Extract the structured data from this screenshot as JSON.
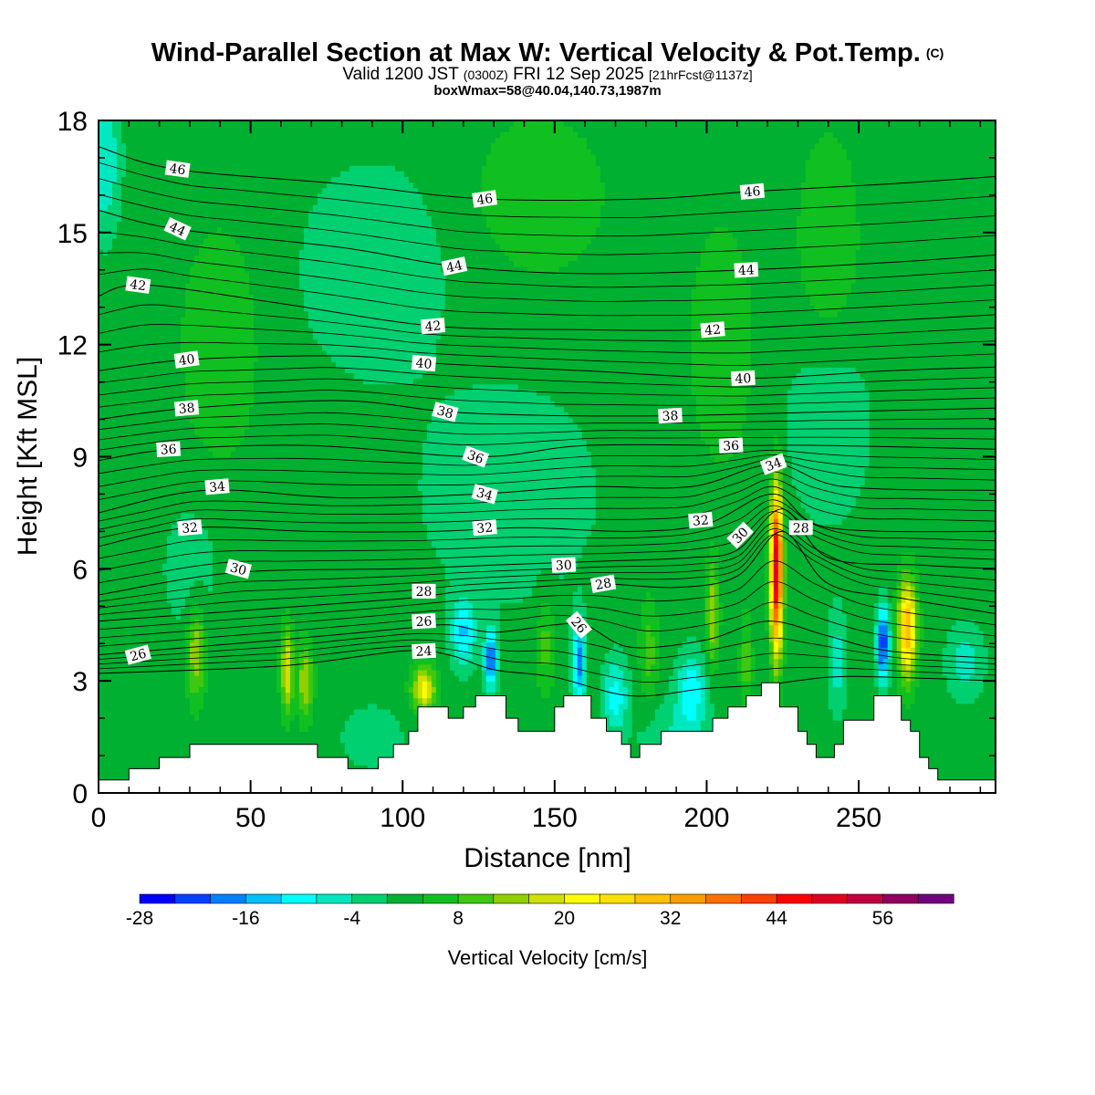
{
  "chart_data": {
    "type": "heatmap",
    "title": "Wind-Parallel Section at Max W: Vertical Velocity & Pot.Temp.",
    "title_mark": "(C)",
    "subtitle_main": "Valid 1200 JST",
    "subtitle_utc": "(0300Z)",
    "subtitle_date": "FRI 12 Sep 2025",
    "subtitle_fcst": "[21hrFcst@1137z]",
    "subtitle2": "boxWmax=58@40.04,140.73,1987m",
    "xlabel": "Distance [nm]",
    "ylabel": "Height [Kft MSL]",
    "xlim": [
      0,
      295
    ],
    "ylim": [
      0,
      18
    ],
    "x_ticks": [
      "0",
      "50",
      "100",
      "150",
      "200",
      "250"
    ],
    "y_ticks": [
      "0",
      "3",
      "6",
      "9",
      "12",
      "15",
      "18"
    ],
    "colorbar_label": "Vertical Velocity [cm/s]",
    "colorbar_ticks": [
      "-28",
      "-16",
      "-4",
      "8",
      "20",
      "32",
      "44",
      "56"
    ],
    "colorbar_colors": [
      "#0000ff",
      "#0040ff",
      "#0080ff",
      "#00c0ff",
      "#00ffff",
      "#00e8c0",
      "#00d070",
      "#00b030",
      "#10c020",
      "#40c810",
      "#90d000",
      "#d0e000",
      "#ffff00",
      "#ffe000",
      "#ffc000",
      "#ff9c00",
      "#ff7000",
      "#ff4000",
      "#ff0000",
      "#e00020",
      "#c00040",
      "#900060",
      "#700080"
    ],
    "background_w_cms": 2,
    "terrain_kft": [
      [
        0,
        0.35
      ],
      [
        10,
        0.35
      ],
      [
        10,
        0.65
      ],
      [
        20,
        0.65
      ],
      [
        20,
        0.95
      ],
      [
        30,
        0.95
      ],
      [
        30,
        1.3
      ],
      [
        72,
        1.3
      ],
      [
        72,
        0.95
      ],
      [
        82,
        0.95
      ],
      [
        82,
        0.65
      ],
      [
        92,
        0.65
      ],
      [
        92,
        0.95
      ],
      [
        97,
        0.95
      ],
      [
        97,
        1.3
      ],
      [
        102,
        1.3
      ],
      [
        102,
        1.65
      ],
      [
        105,
        1.65
      ],
      [
        105,
        2.3
      ],
      [
        115,
        2.3
      ],
      [
        115,
        2.0
      ],
      [
        120,
        2.0
      ],
      [
        120,
        2.3
      ],
      [
        124,
        2.3
      ],
      [
        124,
        2.6
      ],
      [
        134,
        2.6
      ],
      [
        134,
        2.0
      ],
      [
        138,
        2.0
      ],
      [
        138,
        1.65
      ],
      [
        150,
        1.65
      ],
      [
        150,
        2.3
      ],
      [
        153,
        2.3
      ],
      [
        153,
        2.6
      ],
      [
        162,
        2.6
      ],
      [
        162,
        2.0
      ],
      [
        167,
        2.0
      ],
      [
        167,
        1.65
      ],
      [
        172,
        1.65
      ],
      [
        172,
        1.3
      ],
      [
        175,
        1.3
      ],
      [
        175,
        0.95
      ],
      [
        178,
        0.95
      ],
      [
        178,
        1.3
      ],
      [
        185,
        1.3
      ],
      [
        185,
        1.65
      ],
      [
        202,
        1.65
      ],
      [
        202,
        2.0
      ],
      [
        207,
        2.0
      ],
      [
        207,
        2.3
      ],
      [
        213,
        2.3
      ],
      [
        213,
        2.6
      ],
      [
        218,
        2.6
      ],
      [
        218,
        2.95
      ],
      [
        224,
        2.95
      ],
      [
        224,
        2.3
      ],
      [
        230,
        2.3
      ],
      [
        230,
        1.65
      ],
      [
        233,
        1.65
      ],
      [
        233,
        1.3
      ],
      [
        236,
        1.3
      ],
      [
        236,
        0.95
      ],
      [
        242,
        0.95
      ],
      [
        242,
        1.3
      ],
      [
        245,
        1.3
      ],
      [
        245,
        1.95
      ],
      [
        255,
        1.95
      ],
      [
        255,
        2.6
      ],
      [
        264,
        2.6
      ],
      [
        264,
        1.95
      ],
      [
        267,
        1.95
      ],
      [
        267,
        1.65
      ],
      [
        270,
        1.65
      ],
      [
        270,
        0.95
      ],
      [
        273,
        0.95
      ],
      [
        273,
        0.65
      ],
      [
        276,
        0.65
      ],
      [
        276,
        0.35
      ],
      [
        295,
        0.35
      ]
    ],
    "w_cells": [
      {
        "x": 32,
        "z": 3.8,
        "sx": 3,
        "sz": 1.3,
        "w": 14
      },
      {
        "x": 62,
        "z": 3.3,
        "sx": 2,
        "sz": 1.1,
        "w": 18
      },
      {
        "x": 68,
        "z": 3.0,
        "sx": 2.5,
        "sz": 1.0,
        "w": 14
      },
      {
        "x": 107,
        "z": 2.8,
        "sx": 4,
        "sz": 0.6,
        "w": 20
      },
      {
        "x": 120,
        "z": 4.3,
        "sx": 4,
        "sz": 0.9,
        "w": -14
      },
      {
        "x": 129,
        "z": 3.6,
        "sx": 2,
        "sz": 0.8,
        "w": -22
      },
      {
        "x": 147,
        "z": 4.0,
        "sx": 3,
        "sz": 1.3,
        "w": 8
      },
      {
        "x": 158,
        "z": 3.5,
        "sx": 2,
        "sz": 1.1,
        "w": -20
      },
      {
        "x": 170,
        "z": 2.6,
        "sx": 4,
        "sz": 1.0,
        "w": -12
      },
      {
        "x": 181,
        "z": 3.8,
        "sx": 3,
        "sz": 1.4,
        "w": 8
      },
      {
        "x": 195,
        "z": 2.8,
        "sx": 5,
        "sz": 1.0,
        "w": -12
      },
      {
        "x": 202,
        "z": 4.8,
        "sx": 2,
        "sz": 1.4,
        "w": 14
      },
      {
        "x": 213,
        "z": 3.5,
        "sx": 2,
        "sz": 1.3,
        "w": 8
      },
      {
        "x": 223,
        "z": 6.0,
        "sx": 2,
        "sz": 2.2,
        "w": 50
      },
      {
        "x": 243,
        "z": 3.5,
        "sx": 3,
        "sz": 1.4,
        "w": -8
      },
      {
        "x": 258,
        "z": 4.0,
        "sx": 2,
        "sz": 1.0,
        "w": -26
      },
      {
        "x": 266,
        "z": 4.4,
        "sx": 3,
        "sz": 1.3,
        "w": 30
      },
      {
        "x": 285,
        "z": 3.5,
        "sx": 6,
        "sz": 1.0,
        "w": -8
      },
      {
        "x": 40,
        "z": 12.0,
        "sx": 12,
        "sz": 3,
        "w": 6
      },
      {
        "x": 30,
        "z": 6.0,
        "sx": 10,
        "sz": 2,
        "w": -4
      },
      {
        "x": 90,
        "z": 14.0,
        "sx": 25,
        "sz": 3,
        "w": -5
      },
      {
        "x": 145,
        "z": 16.0,
        "sx": 20,
        "sz": 2,
        "w": 6
      },
      {
        "x": 205,
        "z": 12.0,
        "sx": 10,
        "sz": 3,
        "w": 6
      },
      {
        "x": 240,
        "z": 14.5,
        "sx": 10,
        "sz": 3,
        "w": 6
      },
      {
        "x": 135,
        "z": 8.0,
        "sx": 30,
        "sz": 3,
        "w": -5
      },
      {
        "x": 240,
        "z": 10.0,
        "sx": 15,
        "sz": 3,
        "w": -5
      },
      {
        "x": 2,
        "z": 17.0,
        "sx": 5,
        "sz": 2,
        "w": -10
      },
      {
        "x": 90,
        "z": 1.5,
        "sx": 12,
        "sz": 1,
        "w": -4
      },
      {
        "x": 190,
        "z": 1.5,
        "sx": 12,
        "sz": 1,
        "w": -6
      }
    ],
    "theta_levels": [
      24,
      26,
      28,
      30,
      32,
      34,
      36,
      38,
      40,
      42,
      44,
      46
    ],
    "theta_lines": [
      {
        "level": 24,
        "pts": [
          [
            0,
            3.2
          ],
          [
            60,
            3.4
          ],
          [
            100,
            3.8
          ],
          [
            115,
            3.7
          ],
          [
            130,
            3.3
          ],
          [
            150,
            3.1
          ],
          [
            175,
            2.6
          ],
          [
            200,
            2.8
          ],
          [
            220,
            2.9
          ],
          [
            240,
            3.1
          ],
          [
            260,
            3.1
          ],
          [
            295,
            3.0
          ]
        ]
      },
      {
        "level": 26,
        "pts": [
          [
            0,
            3.7
          ],
          [
            60,
            4.1
          ],
          [
            100,
            4.4
          ],
          [
            115,
            4.5
          ],
          [
            130,
            4.3
          ],
          [
            150,
            4.5
          ],
          [
            160,
            4.5
          ],
          [
            175,
            3.9
          ],
          [
            200,
            4.1
          ],
          [
            220,
            4.6
          ],
          [
            240,
            4.2
          ],
          [
            260,
            3.8
          ],
          [
            295,
            3.6
          ]
        ]
      },
      {
        "level": 28,
        "pts": [
          [
            0,
            4.6
          ],
          [
            50,
            4.9
          ],
          [
            100,
            5.2
          ],
          [
            120,
            5.4
          ],
          [
            140,
            5.5
          ],
          [
            165,
            5.6
          ],
          [
            190,
            5.5
          ],
          [
            210,
            5.8
          ],
          [
            225,
            7.0
          ],
          [
            240,
            5.6
          ],
          [
            265,
            5.2
          ],
          [
            295,
            4.8
          ]
        ]
      },
      {
        "level": 30,
        "pts": [
          [
            0,
            5.3
          ],
          [
            45,
            5.9
          ],
          [
            100,
            6.0
          ],
          [
            130,
            6.1
          ],
          [
            165,
            6.2
          ],
          [
            195,
            6.3
          ],
          [
            210,
            6.5
          ],
          [
            225,
            7.6
          ],
          [
            240,
            6.3
          ],
          [
            270,
            6.1
          ],
          [
            295,
            6.0
          ]
        ]
      },
      {
        "level": 32,
        "pts": [
          [
            0,
            6.6
          ],
          [
            30,
            7.1
          ],
          [
            70,
            7.0
          ],
          [
            110,
            7.0
          ],
          [
            140,
            7.1
          ],
          [
            175,
            7.0
          ],
          [
            200,
            7.2
          ],
          [
            222,
            8.0
          ],
          [
            240,
            7.1
          ],
          [
            295,
            7.0
          ]
        ]
      },
      {
        "level": 34,
        "pts": [
          [
            0,
            7.5
          ],
          [
            35,
            8.1
          ],
          [
            80,
            7.9
          ],
          [
            125,
            8.0
          ],
          [
            160,
            8.2
          ],
          [
            195,
            8.2
          ],
          [
            222,
            8.8
          ],
          [
            245,
            8.2
          ],
          [
            295,
            8.1
          ]
        ]
      },
      {
        "level": 36,
        "pts": [
          [
            0,
            8.9
          ],
          [
            25,
            9.2
          ],
          [
            70,
            9.3
          ],
          [
            125,
            9.0
          ],
          [
            160,
            9.3
          ],
          [
            210,
            9.3
          ],
          [
            240,
            9.3
          ],
          [
            295,
            9.2
          ]
        ]
      },
      {
        "level": 38,
        "pts": [
          [
            0,
            10.0
          ],
          [
            30,
            10.3
          ],
          [
            80,
            10.5
          ],
          [
            115,
            10.2
          ],
          [
            150,
            10.1
          ],
          [
            190,
            10.1
          ],
          [
            240,
            10.2
          ],
          [
            295,
            10.3
          ]
        ]
      },
      {
        "level": 40,
        "pts": [
          [
            0,
            11.3
          ],
          [
            30,
            11.6
          ],
          [
            80,
            11.7
          ],
          [
            110,
            11.5
          ],
          [
            160,
            11.3
          ],
          [
            212,
            11.1
          ],
          [
            260,
            11.3
          ],
          [
            295,
            11.4
          ]
        ]
      },
      {
        "level": 42,
        "pts": [
          [
            0,
            13.3
          ],
          [
            15,
            13.6
          ],
          [
            60,
            13.1
          ],
          [
            110,
            12.5
          ],
          [
            160,
            12.4
          ],
          [
            200,
            12.4
          ],
          [
            250,
            12.6
          ],
          [
            295,
            12.8
          ]
        ]
      },
      {
        "level": 44,
        "pts": [
          [
            0,
            15.6
          ],
          [
            25,
            15.1
          ],
          [
            80,
            14.6
          ],
          [
            117,
            14.1
          ],
          [
            160,
            13.9
          ],
          [
            213,
            14.0
          ],
          [
            260,
            14.2
          ],
          [
            295,
            14.4
          ]
        ]
      },
      {
        "level": 46,
        "pts": [
          [
            0,
            17.3
          ],
          [
            25,
            16.7
          ],
          [
            80,
            16.3
          ],
          [
            127,
            15.9
          ],
          [
            180,
            15.9
          ],
          [
            215,
            16.1
          ],
          [
            260,
            16.3
          ],
          [
            295,
            16.5
          ]
        ]
      }
    ],
    "theta_labels": [
      {
        "level": "46",
        "x": 26,
        "z": 16.7,
        "rot": 8
      },
      {
        "level": "46",
        "x": 127,
        "z": 15.9,
        "rot": -8
      },
      {
        "level": "46",
        "x": 215,
        "z": 16.1,
        "rot": -5
      },
      {
        "level": "44",
        "x": 26,
        "z": 15.1,
        "rot": 25
      },
      {
        "level": "44",
        "x": 117,
        "z": 14.1,
        "rot": -12
      },
      {
        "level": "44",
        "x": 213,
        "z": 14.0,
        "rot": -3
      },
      {
        "level": "42",
        "x": 13,
        "z": 13.6,
        "rot": 8
      },
      {
        "level": "42",
        "x": 110,
        "z": 12.5,
        "rot": -5
      },
      {
        "level": "42",
        "x": 202,
        "z": 12.4,
        "rot": -5
      },
      {
        "level": "40",
        "x": 29,
        "z": 11.6,
        "rot": -8
      },
      {
        "level": "40",
        "x": 107,
        "z": 11.5,
        "rot": 5
      },
      {
        "level": "40",
        "x": 212,
        "z": 11.1,
        "rot": -3
      },
      {
        "level": "38",
        "x": 29,
        "z": 10.3,
        "rot": -5
      },
      {
        "level": "38",
        "x": 114,
        "z": 10.2,
        "rot": 15
      },
      {
        "level": "38",
        "x": 188,
        "z": 10.1,
        "rot": -3
      },
      {
        "level": "36",
        "x": 23,
        "z": 9.2,
        "rot": -3
      },
      {
        "level": "36",
        "x": 124,
        "z": 9.0,
        "rot": 20
      },
      {
        "level": "36",
        "x": 208,
        "z": 9.3,
        "rot": -3
      },
      {
        "level": "34",
        "x": 39,
        "z": 8.2,
        "rot": -5
      },
      {
        "level": "34",
        "x": 127,
        "z": 8.0,
        "rot": 15
      },
      {
        "level": "34",
        "x": 222,
        "z": 8.8,
        "rot": -20
      },
      {
        "level": "32",
        "x": 30,
        "z": 7.1,
        "rot": -5
      },
      {
        "level": "32",
        "x": 127,
        "z": 7.1,
        "rot": -5
      },
      {
        "level": "32",
        "x": 198,
        "z": 7.3,
        "rot": -5
      },
      {
        "level": "30",
        "x": 46,
        "z": 6.0,
        "rot": 15
      },
      {
        "level": "30",
        "x": 153,
        "z": 6.1,
        "rot": -3
      },
      {
        "level": "30",
        "x": 211,
        "z": 6.9,
        "rot": -45
      },
      {
        "level": "28",
        "x": 107,
        "z": 5.4,
        "rot": 0
      },
      {
        "level": "28",
        "x": 166,
        "z": 5.6,
        "rot": -10
      },
      {
        "level": "28",
        "x": 231,
        "z": 7.1,
        "rot": 0
      },
      {
        "level": "26",
        "x": 107,
        "z": 4.6,
        "rot": -3
      },
      {
        "level": "26",
        "x": 158,
        "z": 4.5,
        "rot": 50
      },
      {
        "level": "26",
        "x": 13,
        "z": 3.7,
        "rot": -15
      },
      {
        "level": "24",
        "x": 107,
        "z": 3.8,
        "rot": -3
      }
    ]
  }
}
